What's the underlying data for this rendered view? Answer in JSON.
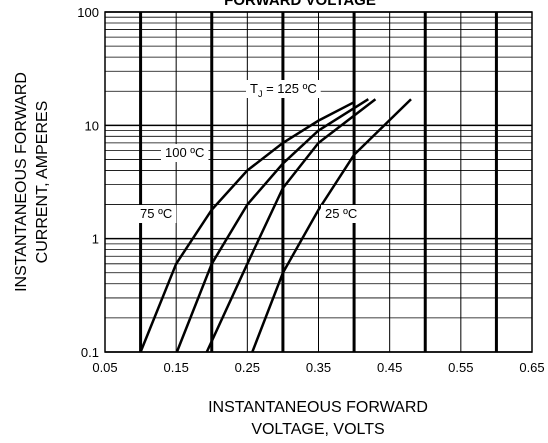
{
  "chart_data": {
    "type": "line",
    "title": "FORWARD VOLTAGE",
    "xlabel": [
      "INSTANTANEOUS FORWARD",
      "VOLTAGE, VOLTS"
    ],
    "ylabel": [
      "INSTANTANEOUS FORWARD",
      "CURRENT,  AMPERES"
    ],
    "xlim": [
      0.05,
      0.65
    ],
    "xticks": [
      0.05,
      0.15,
      0.25,
      0.35,
      0.45,
      0.55,
      0.65
    ],
    "ylim": [
      0.1,
      100
    ],
    "yticks": [
      0.1,
      1,
      10,
      100
    ],
    "log_y": true,
    "grid": true,
    "series": [
      {
        "label": [
          "T",
          "J",
          " = 125 ºC"
        ],
        "color": "#000000",
        "x": [
          0.1,
          0.15,
          0.2,
          0.25,
          0.3,
          0.35,
          0.4
        ],
        "values": [
          0.1,
          0.6,
          1.8,
          4,
          7,
          11,
          16
        ]
      },
      {
        "label": [
          "100 ºC"
        ],
        "color": "#000000",
        "x": [
          0.151,
          0.2,
          0.25,
          0.3,
          0.35,
          0.42
        ],
        "values": [
          0.1,
          0.6,
          2,
          4.6,
          9,
          17
        ]
      },
      {
        "label": [
          "75 ºC"
        ],
        "color": "#000000",
        "x": [
          0.193,
          0.25,
          0.3,
          0.35,
          0.43
        ],
        "values": [
          0.1,
          0.6,
          2.8,
          7,
          17
        ]
      },
      {
        "label": [
          "25 ºC"
        ],
        "color": "#000000",
        "x": [
          0.257,
          0.3,
          0.35,
          0.4,
          0.48
        ],
        "values": [
          0.1,
          0.5,
          1.8,
          5.5,
          17
        ]
      }
    ]
  }
}
